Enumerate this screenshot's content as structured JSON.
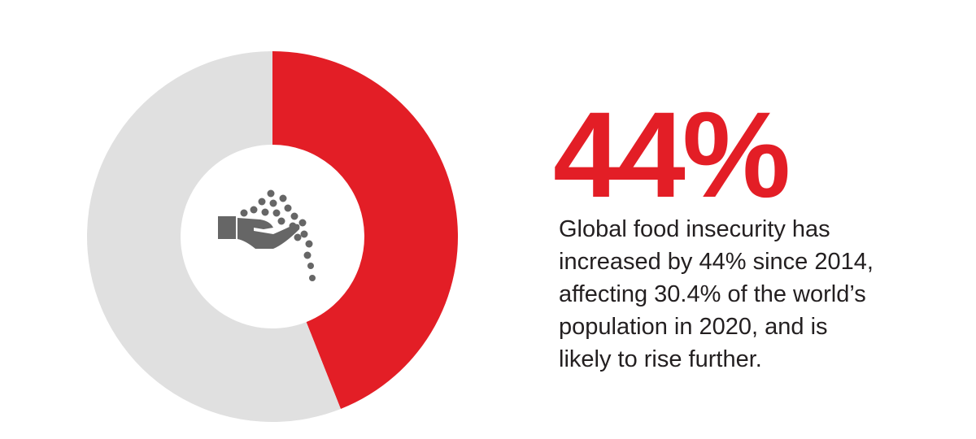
{
  "chart_data": {
    "type": "donut",
    "categories": [
      null,
      null
    ],
    "values": [
      44,
      56
    ],
    "value_labels": [
      "44%",
      null
    ],
    "colors": [
      "#e31e26",
      "#e0e0e0"
    ],
    "description": [
      "Global food insecurity has",
      "increased by 44% since 2014,",
      "affecting 30.4% of the world’s",
      "population in 2020, and is",
      "likely to rise further."
    ]
  }
}
